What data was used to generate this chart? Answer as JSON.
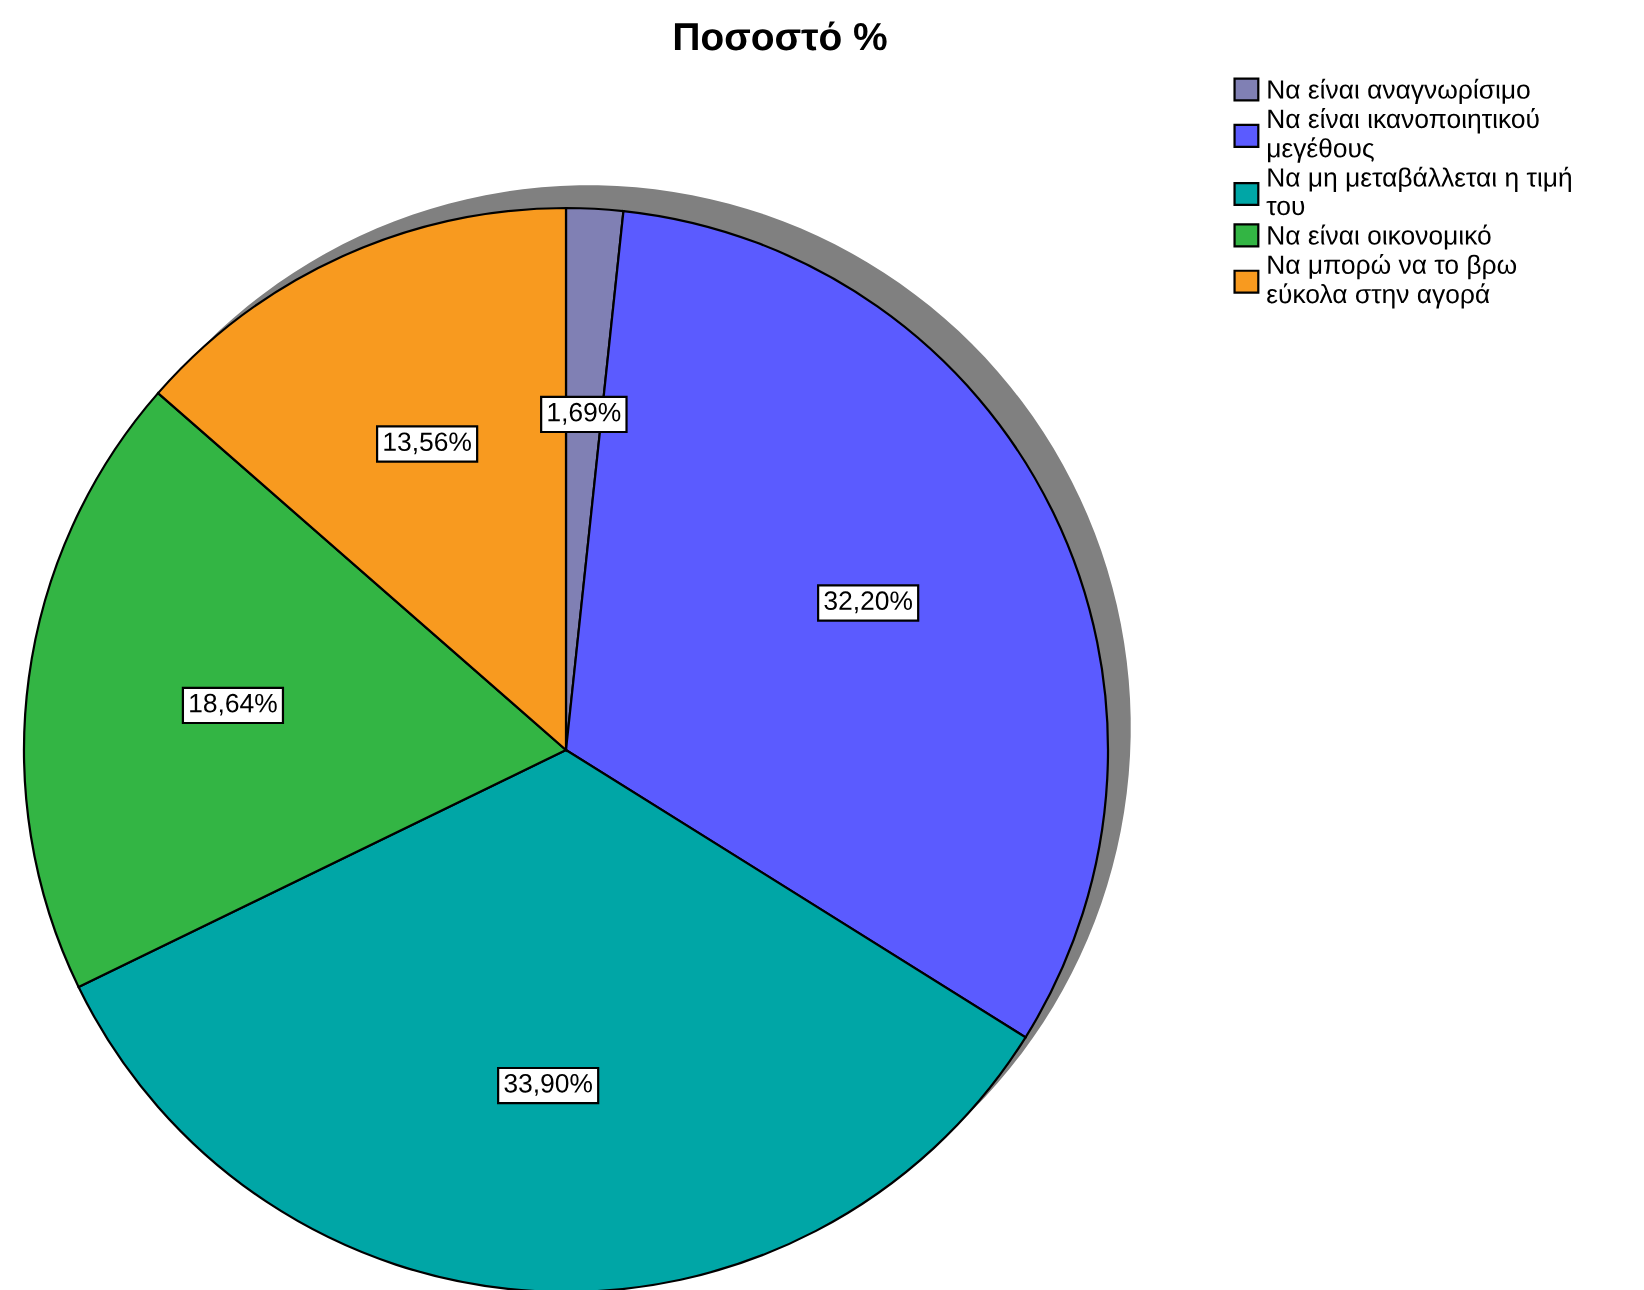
{
  "chart_data": {
    "type": "pie",
    "title": "Ποσοστό %",
    "categories": [
      "Να είναι αναγνωρίσιμο",
      "Να είναι ικανοποιητικού\nμεγέθους",
      "Να μη μεταβάλλεται η τιμή\nτου",
      "Να είναι οικονομικό",
      "Να μπορώ να το βρω\nεύκολα στην αγορά"
    ],
    "values": [
      1.69,
      32.2,
      33.9,
      18.64,
      13.56
    ],
    "colors": [
      "#8080b4",
      "#5b5bff",
      "#00a6a6",
      "#33b544",
      "#f89a1f"
    ],
    "value_labels": [
      "1,69%",
      "32,20%",
      "33,90%",
      "18,64%",
      "13,56%"
    ],
    "legend": "top right"
  }
}
